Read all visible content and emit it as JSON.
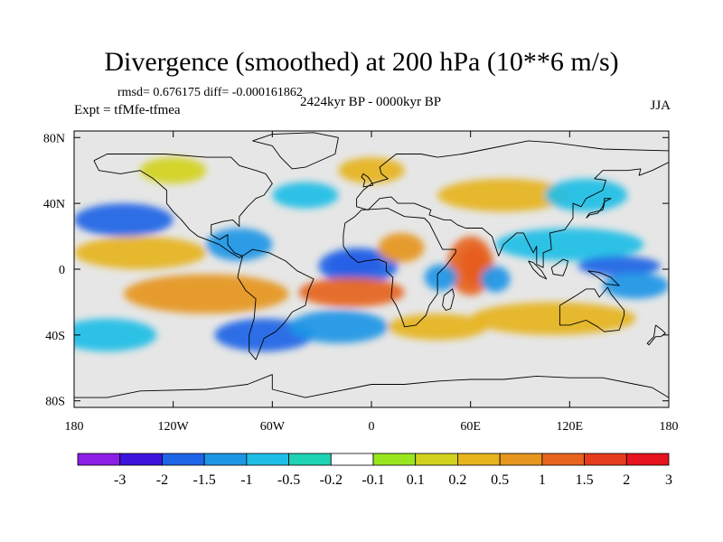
{
  "title": "Divergence (smoothed) at 200 hPa (10**6 m/s)",
  "stats": "rmsd= 0.676175 diff= -0.000161862",
  "period": "2424kyr BP - 0000kyr BP",
  "experiment": "Expt = tfMfe-tfmea",
  "season": "JJA",
  "map": {
    "projection": "cylindrical equidistant",
    "background_color": "#e6e6e6",
    "coastline_color": "#000000"
  },
  "x_ticks": [
    {
      "value": -180,
      "label": "180"
    },
    {
      "value": -120,
      "label": "120W"
    },
    {
      "value": -60,
      "label": "60W"
    },
    {
      "value": 0,
      "label": "0"
    },
    {
      "value": 60,
      "label": "60E"
    },
    {
      "value": 120,
      "label": "120E"
    },
    {
      "value": 180,
      "label": "180"
    }
  ],
  "y_ticks": [
    {
      "value": 80,
      "label": "80N"
    },
    {
      "value": 40,
      "label": "40N"
    },
    {
      "value": 0,
      "label": "0"
    },
    {
      "value": -40,
      "label": "40S"
    },
    {
      "value": -80,
      "label": "80S"
    }
  ],
  "colorbar": {
    "colors": [
      "#8c1ee6",
      "#3c14dc",
      "#1e64e6",
      "#1e96e6",
      "#1ebee6",
      "#1ed2b4",
      "#ffffff",
      "#9ae61e",
      "#d2d21e",
      "#e6b41e",
      "#e6961e",
      "#e6641e",
      "#e63c1e",
      "#e6141e"
    ],
    "labels": [
      "-3",
      "-2",
      "-1.5",
      "-1",
      "-0.5",
      "-0.2",
      "-0.1",
      "0.1",
      "0.2",
      "0.5",
      "1",
      "1.5",
      "2",
      "3"
    ]
  },
  "anomalies": [
    {
      "lon": -10,
      "lat": 3,
      "rx": 16,
      "ry": 7,
      "level": 0
    },
    {
      "lon": -8,
      "lat": 2,
      "rx": 24,
      "ry": 11,
      "level": 2
    },
    {
      "lon": 62,
      "lat": 2,
      "rx": 8,
      "ry": 12,
      "level": 13
    },
    {
      "lon": 60,
      "lat": 2,
      "rx": 14,
      "ry": 18,
      "level": 11
    },
    {
      "lon": 42,
      "lat": -5,
      "rx": 10,
      "ry": 8,
      "level": 3
    },
    {
      "lon": 75,
      "lat": -6,
      "rx": 9,
      "ry": 8,
      "level": 3
    },
    {
      "lon": -12,
      "lat": -14,
      "rx": 32,
      "ry": 9,
      "level": 11
    },
    {
      "lon": 18,
      "lat": 13,
      "rx": 14,
      "ry": 9,
      "level": 10
    },
    {
      "lon": -65,
      "lat": -40,
      "rx": 30,
      "ry": 10,
      "level": 2
    },
    {
      "lon": -150,
      "lat": 30,
      "rx": 30,
      "ry": 10,
      "level": 2
    },
    {
      "lon": -140,
      "lat": 10,
      "rx": 40,
      "ry": 10,
      "level": 9
    },
    {
      "lon": -100,
      "lat": -15,
      "rx": 50,
      "ry": 12,
      "level": 10
    },
    {
      "lon": 120,
      "lat": 15,
      "rx": 45,
      "ry": 10,
      "level": 4
    },
    {
      "lon": 150,
      "lat": 2,
      "rx": 25,
      "ry": 6,
      "level": 2
    },
    {
      "lon": 110,
      "lat": -30,
      "rx": 50,
      "ry": 10,
      "level": 9
    },
    {
      "lon": 80,
      "lat": 45,
      "rx": 40,
      "ry": 10,
      "level": 9
    },
    {
      "lon": -40,
      "lat": 45,
      "rx": 20,
      "ry": 8,
      "level": 4
    },
    {
      "lon": 160,
      "lat": -10,
      "rx": 20,
      "ry": 8,
      "level": 3
    },
    {
      "lon": -20,
      "lat": -35,
      "rx": 30,
      "ry": 10,
      "level": 3
    },
    {
      "lon": 40,
      "lat": -35,
      "rx": 30,
      "ry": 8,
      "level": 9
    },
    {
      "lon": -160,
      "lat": -40,
      "rx": 30,
      "ry": 10,
      "level": 4
    },
    {
      "lon": -80,
      "lat": 15,
      "rx": 20,
      "ry": 10,
      "level": 3
    },
    {
      "lon": 130,
      "lat": 45,
      "rx": 25,
      "ry": 10,
      "level": 4
    },
    {
      "lon": -120,
      "lat": 60,
      "rx": 20,
      "ry": 8,
      "level": 8
    },
    {
      "lon": 0,
      "lat": 60,
      "rx": 20,
      "ry": 8,
      "level": 9
    }
  ],
  "coastlines": [
    {
      "name": "north-america",
      "points": [
        [
          -168,
          66
        ],
        [
          -160,
          70
        ],
        [
          -140,
          70
        ],
        [
          -125,
          70
        ],
        [
          -100,
          68
        ],
        [
          -85,
          68
        ],
        [
          -80,
          63
        ],
        [
          -70,
          60
        ],
        [
          -64,
          58
        ],
        [
          -60,
          52
        ],
        [
          -65,
          45
        ],
        [
          -70,
          43
        ],
        [
          -75,
          38
        ],
        [
          -80,
          32
        ],
        [
          -80,
          26
        ],
        [
          -84,
          30
        ],
        [
          -90,
          29
        ],
        [
          -97,
          27
        ],
        [
          -97,
          21
        ],
        [
          -92,
          18
        ],
        [
          -87,
          21
        ],
        [
          -87,
          15
        ],
        [
          -83,
          10
        ],
        [
          -78,
          8
        ],
        [
          -80,
          7
        ],
        [
          -85,
          10
        ],
        [
          -92,
          15
        ],
        [
          -105,
          20
        ],
        [
          -110,
          24
        ],
        [
          -115,
          30
        ],
        [
          -120,
          35
        ],
        [
          -124,
          40
        ],
        [
          -124,
          48
        ],
        [
          -132,
          55
        ],
        [
          -140,
          60
        ],
        [
          -152,
          58
        ],
        [
          -165,
          60
        ],
        [
          -168,
          66
        ]
      ]
    },
    {
      "name": "greenland",
      "points": [
        [
          -72,
          78
        ],
        [
          -60,
          82
        ],
        [
          -35,
          83
        ],
        [
          -20,
          80
        ],
        [
          -22,
          70
        ],
        [
          -40,
          62
        ],
        [
          -48,
          61
        ],
        [
          -55,
          68
        ],
        [
          -60,
          75
        ],
        [
          -72,
          78
        ]
      ]
    },
    {
      "name": "south-america",
      "points": [
        [
          -78,
          8
        ],
        [
          -72,
          12
        ],
        [
          -62,
          10
        ],
        [
          -52,
          5
        ],
        [
          -45,
          -1
        ],
        [
          -35,
          -6
        ],
        [
          -38,
          -13
        ],
        [
          -40,
          -22
        ],
        [
          -48,
          -26
        ],
        [
          -53,
          -33
        ],
        [
          -58,
          -38
        ],
        [
          -65,
          -42
        ],
        [
          -68,
          -50
        ],
        [
          -70,
          -55
        ],
        [
          -74,
          -50
        ],
        [
          -74,
          -40
        ],
        [
          -71,
          -30
        ],
        [
          -70,
          -18
        ],
        [
          -76,
          -13
        ],
        [
          -81,
          -5
        ],
        [
          -80,
          0
        ],
        [
          -78,
          8
        ]
      ]
    },
    {
      "name": "africa",
      "points": [
        [
          -17,
          21
        ],
        [
          -16,
          28
        ],
        [
          -10,
          32
        ],
        [
          -6,
          36
        ],
        [
          10,
          37
        ],
        [
          20,
          32
        ],
        [
          32,
          31
        ],
        [
          35,
          28
        ],
        [
          43,
          12
        ],
        [
          51,
          12
        ],
        [
          51,
          10
        ],
        [
          45,
          2
        ],
        [
          40,
          -3
        ],
        [
          40,
          -15
        ],
        [
          35,
          -22
        ],
        [
          33,
          -28
        ],
        [
          27,
          -34
        ],
        [
          20,
          -35
        ],
        [
          18,
          -29
        ],
        [
          15,
          -22
        ],
        [
          12,
          -17
        ],
        [
          13,
          -5
        ],
        [
          9,
          -1
        ],
        [
          9,
          4
        ],
        [
          4,
          6
        ],
        [
          -4,
          5
        ],
        [
          -8,
          4
        ],
        [
          -13,
          8
        ],
        [
          -17,
          14
        ],
        [
          -17,
          21
        ]
      ]
    },
    {
      "name": "eurasia",
      "points": [
        [
          -9,
          43
        ],
        [
          -9,
          38
        ],
        [
          -2,
          36
        ],
        [
          5,
          43
        ],
        [
          12,
          44
        ],
        [
          16,
          40
        ],
        [
          20,
          40
        ],
        [
          26,
          40
        ],
        [
          36,
          36
        ],
        [
          35,
          33
        ],
        [
          44,
          30
        ],
        [
          48,
          30
        ],
        [
          52,
          27
        ],
        [
          57,
          25
        ],
        [
          60,
          25
        ],
        [
          67,
          25
        ],
        [
          73,
          20
        ],
        [
          77,
          8
        ],
        [
          80,
          15
        ],
        [
          88,
          22
        ],
        [
          92,
          22
        ],
        [
          95,
          16
        ],
        [
          98,
          10
        ],
        [
          100,
          14
        ],
        [
          100,
          3
        ],
        [
          104,
          1
        ],
        [
          104,
          10
        ],
        [
          109,
          12
        ],
        [
          108,
          22
        ],
        [
          117,
          24
        ],
        [
          122,
          31
        ],
        [
          122,
          40
        ],
        [
          127,
          38
        ],
        [
          130,
          43
        ],
        [
          140,
          48
        ],
        [
          142,
          54
        ],
        [
          135,
          55
        ],
        [
          140,
          60
        ],
        [
          155,
          60
        ],
        [
          163,
          61
        ],
        [
          162,
          57
        ],
        [
          170,
          60
        ],
        [
          180,
          65
        ],
        [
          180,
          72
        ],
        [
          140,
          73
        ],
        [
          110,
          77
        ],
        [
          95,
          78
        ],
        [
          70,
          73
        ],
        [
          55,
          70
        ],
        [
          40,
          68
        ],
        [
          30,
          70
        ],
        [
          15,
          70
        ],
        [
          5,
          62
        ],
        [
          6,
          58
        ],
        [
          10,
          55
        ],
        [
          0,
          52
        ],
        [
          -5,
          48
        ],
        [
          -9,
          43
        ]
      ]
    },
    {
      "name": "australia",
      "points": [
        [
          114,
          -22
        ],
        [
          114,
          -34
        ],
        [
          120,
          -34
        ],
        [
          130,
          -31
        ],
        [
          137,
          -35
        ],
        [
          141,
          -38
        ],
        [
          150,
          -37
        ],
        [
          153,
          -28
        ],
        [
          153,
          -25
        ],
        [
          145,
          -15
        ],
        [
          143,
          -11
        ],
        [
          138,
          -17
        ],
        [
          135,
          -12
        ],
        [
          130,
          -12
        ],
        [
          124,
          -16
        ],
        [
          114,
          -22
        ]
      ]
    },
    {
      "name": "antarctica",
      "points": [
        [
          -180,
          -78
        ],
        [
          -160,
          -78
        ],
        [
          -140,
          -74
        ],
        [
          -100,
          -73
        ],
        [
          -75,
          -70
        ],
        [
          -60,
          -64
        ],
        [
          -60,
          -73
        ],
        [
          -40,
          -78
        ],
        [
          -20,
          -74
        ],
        [
          0,
          -70
        ],
        [
          20,
          -70
        ],
        [
          40,
          -68
        ],
        [
          60,
          -67
        ],
        [
          80,
          -67
        ],
        [
          100,
          -65
        ],
        [
          120,
          -66
        ],
        [
          140,
          -66
        ],
        [
          160,
          -70
        ],
        [
          170,
          -72
        ],
        [
          180,
          -78
        ]
      ]
    },
    {
      "name": "madagascar",
      "points": [
        [
          44,
          -16
        ],
        [
          49,
          -12
        ],
        [
          50,
          -16
        ],
        [
          48,
          -24
        ],
        [
          45,
          -25
        ],
        [
          43,
          -22
        ],
        [
          44,
          -16
        ]
      ]
    },
    {
      "name": "britain",
      "points": [
        [
          -5,
          50
        ],
        [
          1,
          51
        ],
        [
          0,
          53
        ],
        [
          -2,
          56
        ],
        [
          -5,
          58
        ],
        [
          -6,
          56
        ],
        [
          -4,
          54
        ],
        [
          -5,
          50
        ]
      ]
    },
    {
      "name": "japan",
      "points": [
        [
          130,
          31
        ],
        [
          132,
          34
        ],
        [
          136,
          35
        ],
        [
          140,
          36
        ],
        [
          141,
          40
        ],
        [
          141,
          43
        ],
        [
          145,
          43
        ],
        [
          141,
          41
        ],
        [
          140,
          38
        ],
        [
          137,
          34
        ],
        [
          132,
          33
        ],
        [
          130,
          31
        ]
      ]
    },
    {
      "name": "borneo",
      "points": [
        [
          109,
          1
        ],
        [
          112,
          3
        ],
        [
          116,
          6
        ],
        [
          119,
          5
        ],
        [
          118,
          1
        ],
        [
          116,
          -4
        ],
        [
          110,
          -3
        ],
        [
          109,
          1
        ]
      ]
    },
    {
      "name": "sumatra",
      "points": [
        [
          95,
          5
        ],
        [
          98,
          4
        ],
        [
          103,
          -1
        ],
        [
          106,
          -6
        ],
        [
          102,
          -4
        ],
        [
          98,
          0
        ],
        [
          95,
          5
        ]
      ]
    },
    {
      "name": "new-guinea",
      "points": [
        [
          131,
          -1
        ],
        [
          138,
          -2
        ],
        [
          145,
          -5
        ],
        [
          150,
          -10
        ],
        [
          142,
          -9
        ],
        [
          137,
          -5
        ],
        [
          131,
          -1
        ]
      ]
    },
    {
      "name": "new-zealand",
      "points": [
        [
          172,
          -34
        ],
        [
          176,
          -37
        ],
        [
          178,
          -39
        ],
        [
          175,
          -41
        ],
        [
          172,
          -41
        ],
        [
          168,
          -46
        ],
        [
          167,
          -45
        ],
        [
          171,
          -41
        ],
        [
          172,
          -34
        ]
      ]
    }
  ]
}
